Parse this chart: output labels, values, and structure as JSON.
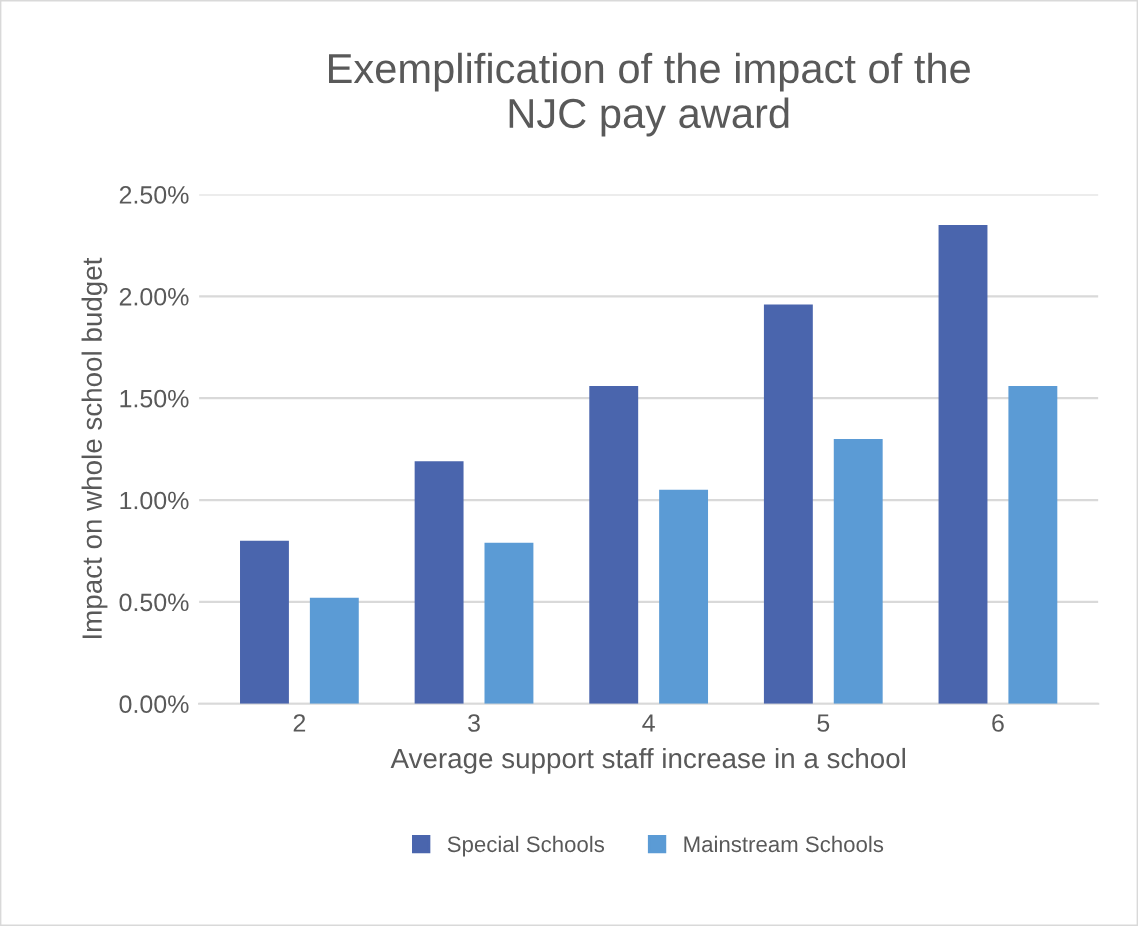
{
  "chart_data": {
    "type": "bar",
    "title": "Exemplification of the impact of the\nNJC pay award",
    "xlabel": "Average support staff increase in a school",
    "ylabel": "Impact on whole school budget",
    "categories": [
      "2",
      "3",
      "4",
      "5",
      "6"
    ],
    "series": [
      {
        "name": "Special Schools",
        "color": "#4a65ad",
        "values": [
          0.8,
          1.19,
          1.56,
          1.96,
          2.35
        ]
      },
      {
        "name": "Mainstream Schools",
        "color": "#5b9bd5",
        "values": [
          0.52,
          0.79,
          1.05,
          1.3,
          1.56
        ]
      }
    ],
    "ylim": [
      0,
      2.5
    ],
    "yticks": [
      {
        "value": 0,
        "label": "0.00%"
      },
      {
        "value": 0.5,
        "label": "0.50%"
      },
      {
        "value": 1,
        "label": "1.00%"
      },
      {
        "value": 1.5,
        "label": "1.50%"
      },
      {
        "value": 2,
        "label": "2.00%"
      },
      {
        "value": 2.5,
        "label": "2.50%"
      }
    ],
    "grid": "y",
    "legend": "bottom"
  }
}
